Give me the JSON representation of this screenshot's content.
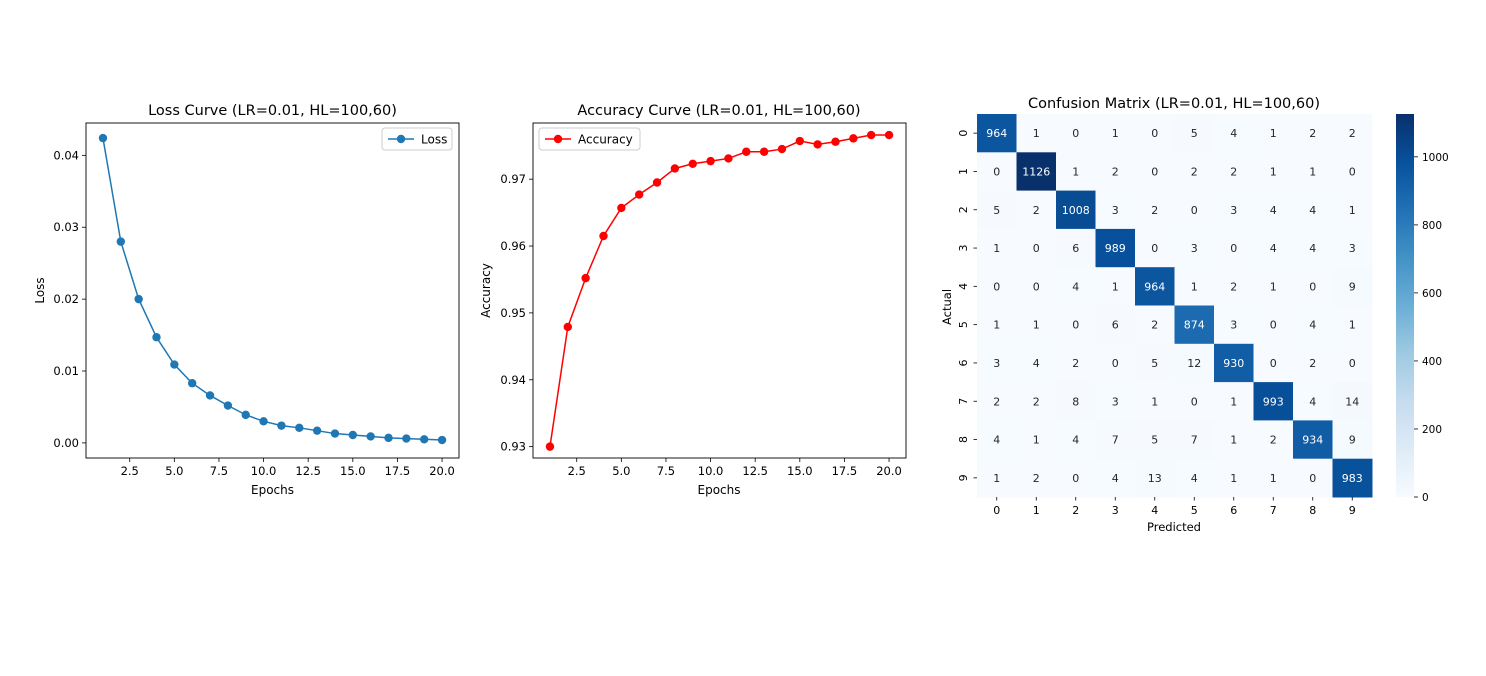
{
  "chart_data": [
    {
      "type": "line",
      "title": "Loss Curve (LR=0.01, HL=100,60)",
      "xlabel": "Epochs",
      "ylabel": "Loss",
      "xlim": [
        0.05,
        20.95
      ],
      "ylim": [
        -0.0021,
        0.0445
      ],
      "xticks": [
        2.5,
        5.0,
        7.5,
        10.0,
        12.5,
        15.0,
        17.5,
        20.0
      ],
      "xtick_labels": [
        "2.5",
        "5.0",
        "7.5",
        "10.0",
        "12.5",
        "15.0",
        "17.5",
        "20.0"
      ],
      "yticks": [
        0.0,
        0.01,
        0.02,
        0.03,
        0.04
      ],
      "ytick_labels": [
        "0.00",
        "0.01",
        "0.02",
        "0.03",
        "0.04"
      ],
      "legend": "top-right",
      "grid": false,
      "series": [
        {
          "name": "Loss",
          "color": "#1f77b4",
          "marker": "circle",
          "x": [
            1,
            2,
            3,
            4,
            5,
            6,
            7,
            8,
            9,
            10,
            11,
            12,
            13,
            14,
            15,
            16,
            17,
            18,
            19,
            20
          ],
          "values": [
            0.0424,
            0.028,
            0.02,
            0.0147,
            0.0109,
            0.0083,
            0.0066,
            0.0052,
            0.0039,
            0.003,
            0.0024,
            0.0021,
            0.0017,
            0.0013,
            0.0011,
            0.0009,
            0.0007,
            0.0006,
            0.0005,
            0.0004
          ]
        }
      ]
    },
    {
      "type": "line",
      "title": "Accuracy Curve (LR=0.01, HL=100,60)",
      "xlabel": "Epochs",
      "ylabel": "Accuracy",
      "xlim": [
        0.05,
        20.95
      ],
      "ylim": [
        0.9283,
        0.9784
      ],
      "xticks": [
        2.5,
        5.0,
        7.5,
        10.0,
        12.5,
        15.0,
        17.5,
        20.0
      ],
      "xtick_labels": [
        "2.5",
        "5.0",
        "7.5",
        "10.0",
        "12.5",
        "15.0",
        "17.5",
        "20.0"
      ],
      "yticks": [
        0.93,
        0.94,
        0.95,
        0.96,
        0.97
      ],
      "ytick_labels": [
        "0.93",
        "0.94",
        "0.95",
        "0.96",
        "0.97"
      ],
      "legend": "top-left",
      "grid": false,
      "series": [
        {
          "name": "Accuracy",
          "color": "#ff0000",
          "marker": "circle",
          "x": [
            1,
            2,
            3,
            4,
            5,
            6,
            7,
            8,
            9,
            10,
            11,
            12,
            13,
            14,
            15,
            16,
            17,
            18,
            19,
            20
          ],
          "values": [
            0.93,
            0.9479,
            0.9552,
            0.9615,
            0.9657,
            0.9677,
            0.9695,
            0.9716,
            0.9723,
            0.9727,
            0.9731,
            0.9741,
            0.9741,
            0.9745,
            0.9757,
            0.9752,
            0.9756,
            0.9761,
            0.9766,
            0.9766
          ]
        }
      ]
    },
    {
      "type": "heatmap",
      "title": "Confusion Matrix (LR=0.01, HL=100,60)",
      "xlabel": "Predicted",
      "ylabel": "Actual",
      "x_labels": [
        "0",
        "1",
        "2",
        "3",
        "4",
        "5",
        "6",
        "7",
        "8",
        "9"
      ],
      "y_labels": [
        "0",
        "1",
        "2",
        "3",
        "4",
        "5",
        "6",
        "7",
        "8",
        "9"
      ],
      "colormap": "Blues",
      "vmin": 0,
      "vmax": 1126,
      "colorbar_ticks": [
        0,
        200,
        400,
        600,
        800,
        1000
      ],
      "colorbar_tick_labels": [
        "0",
        "200",
        "400",
        "600",
        "800",
        "1000"
      ],
      "matrix": [
        [
          964,
          1,
          0,
          1,
          0,
          5,
          4,
          1,
          2,
          2
        ],
        [
          0,
          1126,
          1,
          2,
          0,
          2,
          2,
          1,
          1,
          0
        ],
        [
          5,
          2,
          1008,
          3,
          2,
          0,
          3,
          4,
          4,
          1
        ],
        [
          1,
          0,
          6,
          989,
          0,
          3,
          0,
          4,
          4,
          3
        ],
        [
          0,
          0,
          4,
          1,
          964,
          1,
          2,
          1,
          0,
          9
        ],
        [
          1,
          1,
          0,
          6,
          2,
          874,
          3,
          0,
          4,
          1
        ],
        [
          3,
          4,
          2,
          0,
          5,
          12,
          930,
          0,
          2,
          0
        ],
        [
          2,
          2,
          8,
          3,
          1,
          0,
          1,
          993,
          4,
          14
        ],
        [
          4,
          1,
          4,
          7,
          5,
          7,
          1,
          2,
          934,
          9
        ],
        [
          1,
          2,
          0,
          4,
          13,
          4,
          1,
          1,
          0,
          983
        ]
      ]
    }
  ]
}
